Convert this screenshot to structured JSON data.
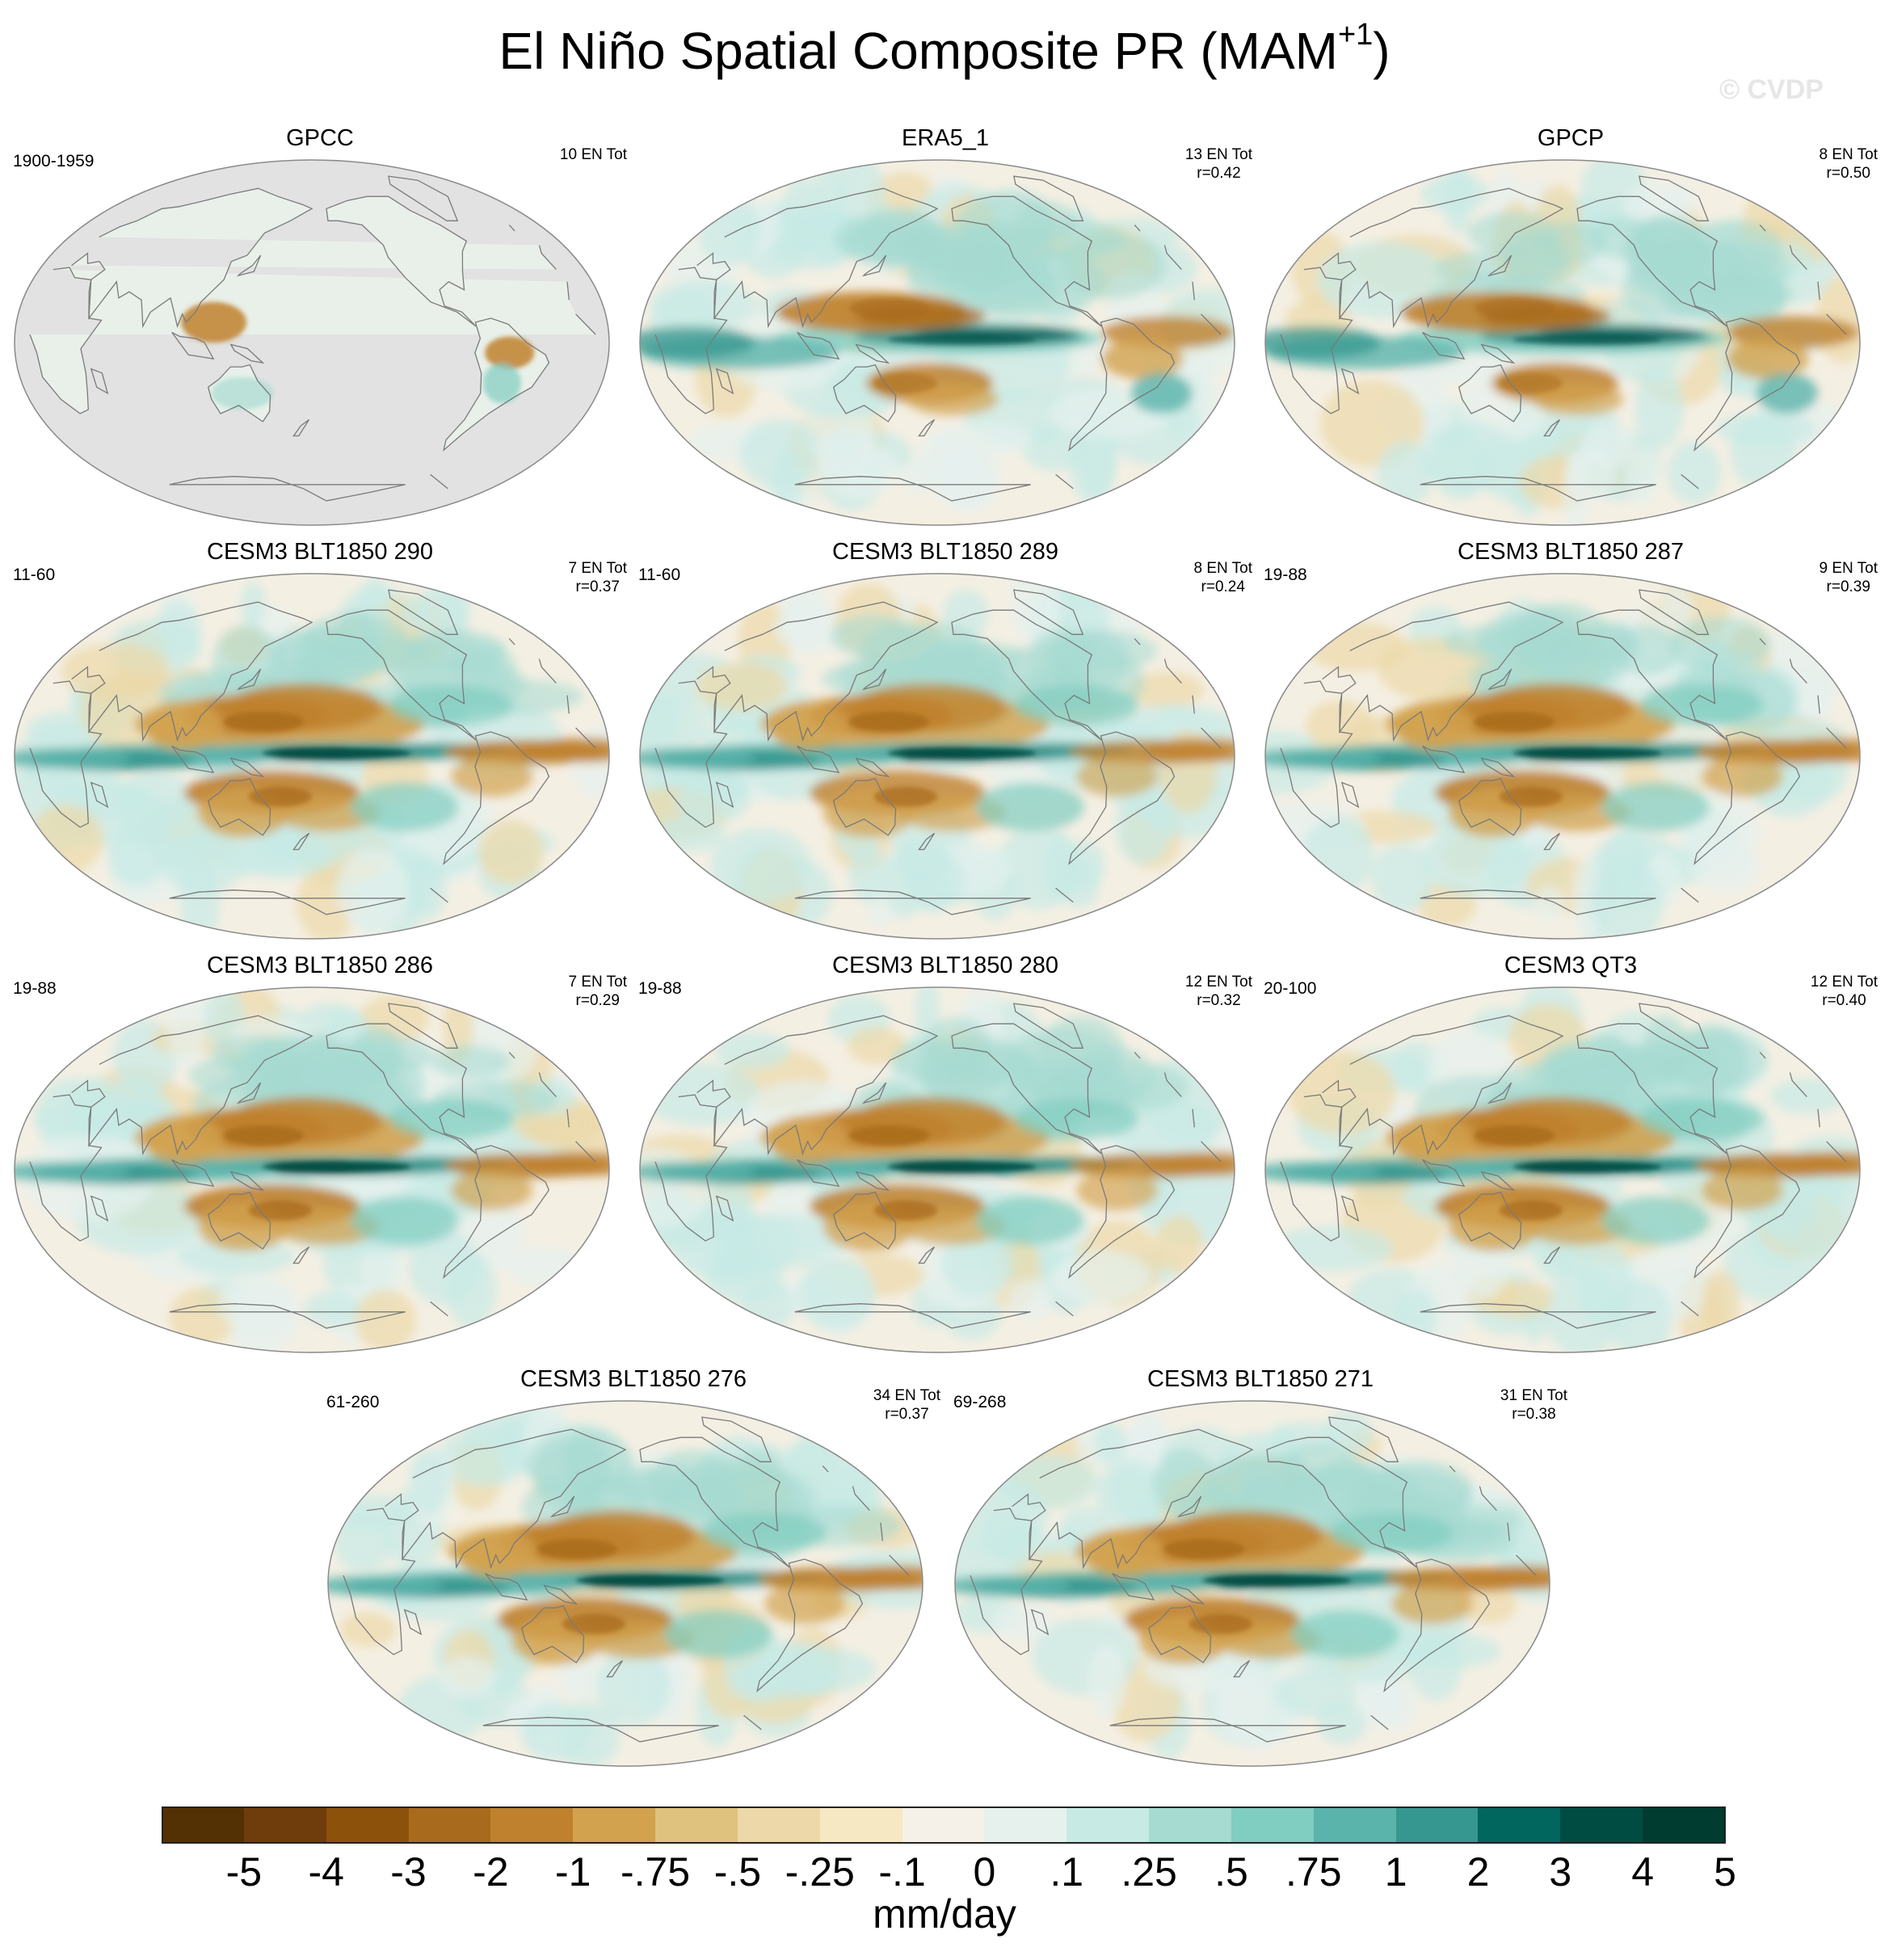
{
  "title": "El Niño Spatial Composite PR (MAM",
  "title_sup": "+1",
  "title_close": ")",
  "watermark": "© CVDP",
  "units": "mm/day",
  "colorbar": {
    "ticks": [
      "-5",
      "-4",
      "-3",
      "-2",
      "-1",
      "-.75",
      "-.5",
      "-.25",
      "-.1",
      "0",
      ".1",
      ".25",
      ".5",
      ".75",
      "1",
      "2",
      "3",
      "4",
      "5"
    ],
    "colors": [
      "#543005",
      "#6f3d0b",
      "#8c510a",
      "#a86a1c",
      "#bf812d",
      "#d2a24f",
      "#dfc27d",
      "#ecd8a8",
      "#f6e8c3",
      "#f5f1e8",
      "#e6f1ee",
      "#c7eae5",
      "#a6dbd2",
      "#80cdc1",
      "#5ab4ac",
      "#35978f",
      "#01665e",
      "#004c42",
      "#003c30"
    ]
  },
  "panels": [
    {
      "title": "GPCC",
      "years": "1900-1959",
      "stats": [
        "10 EN Tot"
      ],
      "land_only": true,
      "pattern": 0
    },
    {
      "title": "ERA5_1",
      "years": "",
      "stats": [
        "13 EN Tot",
        "r=0.42"
      ],
      "land_only": false,
      "pattern": 1
    },
    {
      "title": "GPCP",
      "years": "",
      "stats": [
        "8 EN Tot",
        "r=0.50"
      ],
      "land_only": false,
      "pattern": 2
    },
    {
      "title": "CESM3 BLT1850 290",
      "years": "11-60",
      "stats": [
        "7 EN Tot",
        "r=0.37"
      ],
      "land_only": false,
      "pattern": 3
    },
    {
      "title": "CESM3 BLT1850 289",
      "years": "11-60",
      "stats": [
        "8 EN Tot",
        "r=0.24"
      ],
      "land_only": false,
      "pattern": 4
    },
    {
      "title": "CESM3 BLT1850 287",
      "years": "19-88",
      "stats": [
        "9 EN Tot",
        "r=0.39"
      ],
      "land_only": false,
      "pattern": 5
    },
    {
      "title": "CESM3 BLT1850 286",
      "years": "19-88",
      "stats": [
        "7 EN Tot",
        "r=0.29"
      ],
      "land_only": false,
      "pattern": 6
    },
    {
      "title": "CESM3 BLT1850 280",
      "years": "19-88",
      "stats": [
        "12 EN Tot",
        "r=0.32"
      ],
      "land_only": false,
      "pattern": 7
    },
    {
      "title": "CESM3 QT3",
      "years": "20-100",
      "stats": [
        "12 EN Tot",
        "r=0.40"
      ],
      "land_only": false,
      "pattern": 8
    },
    {
      "title": "CESM3 BLT1850 276",
      "years": "61-260",
      "stats": [
        "34 EN Tot",
        "r=0.37"
      ],
      "land_only": false,
      "pattern": 9
    },
    {
      "title": "CESM3 BLT1850 271",
      "years": "69-268",
      "stats": [
        "31 EN Tot",
        "r=0.38"
      ],
      "land_only": false,
      "pattern": 10
    }
  ]
}
